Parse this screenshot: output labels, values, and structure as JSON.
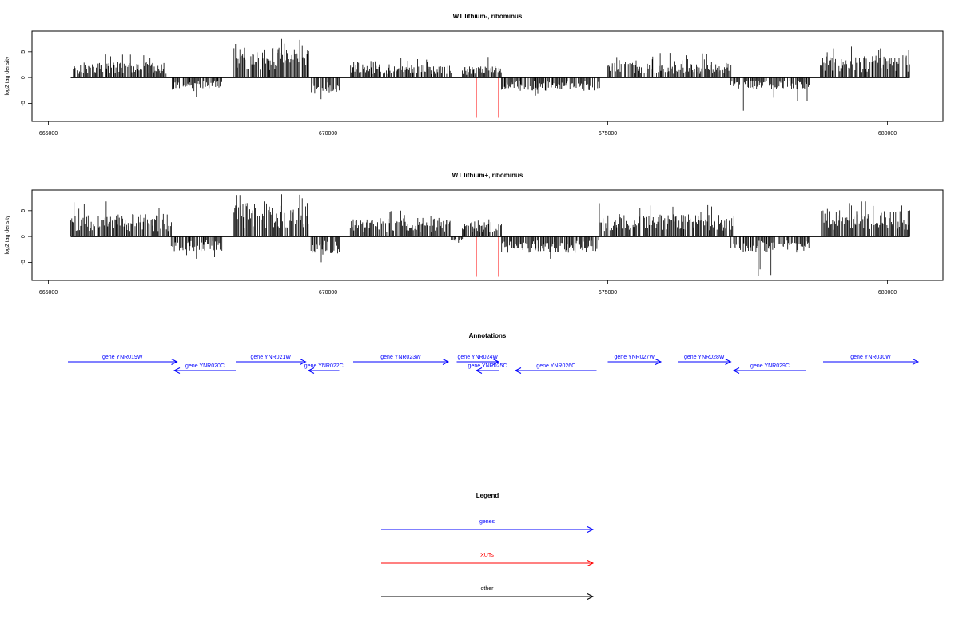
{
  "chart_data": [
    {
      "type": "bar",
      "title": "WT lithium-, ribominus",
      "ylabel": "log2 tag density",
      "xlim": [
        664300,
        681200
      ],
      "ylim": [
        -8.5,
        9
      ],
      "xticks": [
        665000,
        670000,
        675000,
        680000
      ],
      "yticks": [
        -5,
        0,
        5
      ],
      "baseline_range": [
        665400,
        680400
      ],
      "grid": false,
      "signal_segments": [
        {
          "strand": "+",
          "start": 665450,
          "end": 667100,
          "mean": 2.0,
          "max": 4.5
        },
        {
          "strand": "-",
          "start": 667200,
          "end": 668100,
          "mean": -1.5,
          "max": -3.8
        },
        {
          "strand": "+",
          "start": 668300,
          "end": 669650,
          "mean": 4.0,
          "max": 7.5
        },
        {
          "strand": "-",
          "start": 669700,
          "end": 670200,
          "mean": -2.0,
          "max": -4.2
        },
        {
          "strand": "+",
          "start": 670400,
          "end": 672200,
          "mean": 1.8,
          "max": 3.8
        },
        {
          "strand": "+",
          "start": 672400,
          "end": 673100,
          "mean": 1.5,
          "max": 4.0
        },
        {
          "strand": "-",
          "start": 673100,
          "end": 674850,
          "mean": -1.8,
          "max": -3.5
        },
        {
          "strand": "+",
          "start": 675000,
          "end": 677200,
          "mean": 2.0,
          "max": 4.8
        },
        {
          "strand": "-",
          "start": 677200,
          "end": 678600,
          "mean": -1.6,
          "max": -6.5
        },
        {
          "strand": "+",
          "start": 678800,
          "end": 680400,
          "mean": 3.0,
          "max": 6.0
        }
      ],
      "xut_marks": [
        {
          "x": 672650,
          "y": -7.8
        },
        {
          "x": 673050,
          "y": -7.8
        }
      ]
    },
    {
      "type": "bar",
      "title": "WT lithium+, ribominus",
      "ylabel": "log2 tag density",
      "xlim": [
        664300,
        681200
      ],
      "ylim": [
        -8.5,
        9
      ],
      "xticks": [
        665000,
        670000,
        675000,
        680000
      ],
      "yticks": [
        -5,
        0,
        5
      ],
      "baseline_range": [
        665400,
        680400
      ],
      "grid": false,
      "signal_segments": [
        {
          "strand": "+",
          "start": 665400,
          "end": 667200,
          "mean": 3.0,
          "max": 6.8
        },
        {
          "strand": "-",
          "start": 667200,
          "end": 668100,
          "mean": -2.0,
          "max": -4.3
        },
        {
          "strand": "+",
          "start": 668300,
          "end": 669650,
          "mean": 4.5,
          "max": 8.2
        },
        {
          "strand": "-",
          "start": 669700,
          "end": 670200,
          "mean": -2.5,
          "max": -5.0
        },
        {
          "strand": "+",
          "start": 670400,
          "end": 672200,
          "mean": 2.5,
          "max": 5.0
        },
        {
          "strand": "-",
          "start": 672200,
          "end": 672400,
          "mean": -0.6,
          "max": -1.2
        },
        {
          "strand": "+",
          "start": 672400,
          "end": 673100,
          "mean": 2.0,
          "max": 4.5
        },
        {
          "strand": "-",
          "start": 673100,
          "end": 674850,
          "mean": -2.2,
          "max": -4.3
        },
        {
          "strand": "+",
          "start": 674850,
          "end": 677250,
          "mean": 3.0,
          "max": 6.5
        },
        {
          "strand": "-",
          "start": 677200,
          "end": 678600,
          "mean": -2.2,
          "max": -7.7
        },
        {
          "strand": "+",
          "start": 678800,
          "end": 680400,
          "mean": 3.5,
          "max": 6.8
        }
      ],
      "xut_marks": [
        {
          "x": 672650,
          "y": -7.8
        },
        {
          "x": 673050,
          "y": -7.8
        }
      ]
    }
  ],
  "annotations": {
    "title": "Annotations",
    "color": "#0000ff",
    "genes": [
      {
        "label": "gene YNR019W",
        "start": 665350,
        "end": 667300,
        "strand": "+",
        "row": 0
      },
      {
        "label": "gene YNR020C",
        "start": 667250,
        "end": 668350,
        "strand": "-",
        "row": 1
      },
      {
        "label": "gene YNR021W",
        "start": 668350,
        "end": 669600,
        "strand": "+",
        "row": 0
      },
      {
        "label": "gene YNR022C",
        "start": 669650,
        "end": 670200,
        "strand": "-",
        "row": 1
      },
      {
        "label": "gene YNR023W",
        "start": 670450,
        "end": 672150,
        "strand": "+",
        "row": 0
      },
      {
        "label": "gene YNR024W",
        "start": 672300,
        "end": 673050,
        "strand": "+",
        "row": 0
      },
      {
        "label": "gene YNR025C",
        "start": 672650,
        "end": 673050,
        "strand": "-",
        "row": 1
      },
      {
        "label": "gene YNR026C",
        "start": 673350,
        "end": 674800,
        "strand": "-",
        "row": 1
      },
      {
        "label": "gene YNR027W",
        "start": 675000,
        "end": 675950,
        "strand": "+",
        "row": 0
      },
      {
        "label": "gene YNR028W",
        "start": 676250,
        "end": 677200,
        "strand": "+",
        "row": 0
      },
      {
        "label": "gene YNR029C",
        "start": 677250,
        "end": 678550,
        "strand": "-",
        "row": 1
      },
      {
        "label": "gene YNR030W",
        "start": 678850,
        "end": 680550,
        "strand": "+",
        "row": 0
      }
    ]
  },
  "legend": {
    "title": "Legend",
    "items": [
      {
        "label": "genes",
        "color": "#0000ff"
      },
      {
        "label": "XUTs",
        "color": "#ff0000"
      },
      {
        "label": "other",
        "color": "#000000"
      }
    ]
  }
}
